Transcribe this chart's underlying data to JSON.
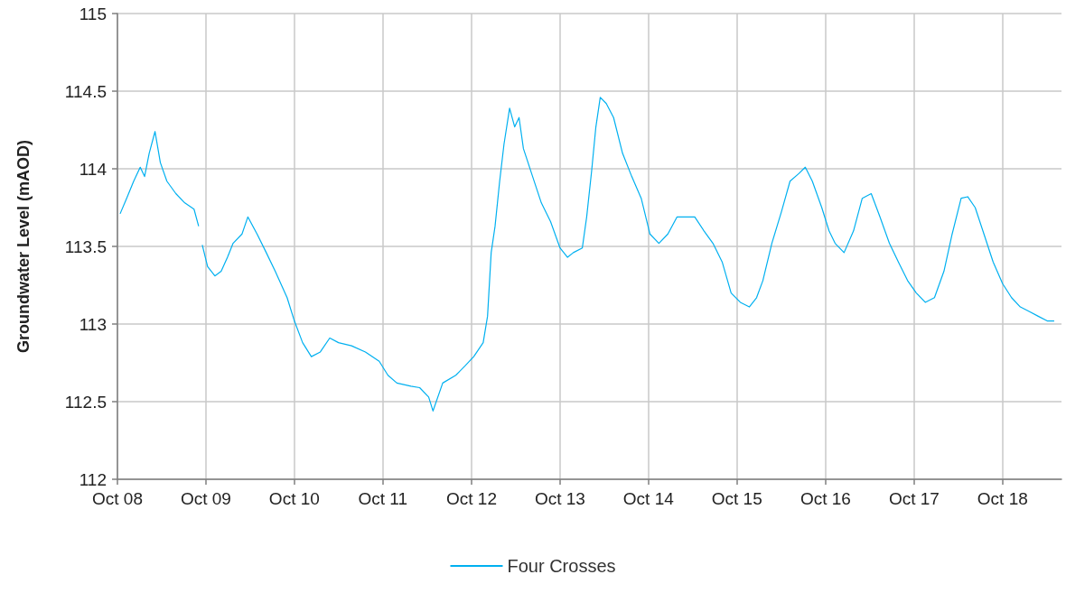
{
  "chart_data": {
    "type": "line",
    "ylabel": "Groundwater Level (mAOD)",
    "x": [
      "2008-10-12",
      "2008-11-08",
      "2008-12-07",
      "2009-01-03",
      "2009-01-21",
      "2009-02-09",
      "2009-03-05",
      "2009-03-27",
      "2009-04-23",
      "2009-05-30",
      "2009-07-06",
      "2009-08-13",
      "2009-09-01",
      "2009-09-10",
      "2009-09-16",
      "2009-10-08",
      "2009-11-07",
      "2009-12-03",
      "2009-12-29",
      "2010-01-21",
      "2010-02-27",
      "2010-03-23",
      "2010-04-30",
      "2010-06-07",
      "2010-07-14",
      "2010-09-01",
      "2010-10-01",
      "2010-11-04",
      "2010-12-10",
      "2011-01-16",
      "2011-02-24",
      "2011-04-01",
      "2011-05-25",
      "2011-07-21",
      "2011-09-16",
      "2011-10-22",
      "2011-11-28",
      "2012-01-25",
      "2012-03-01",
      "2012-04-07",
      "2012-04-25",
      "2012-06-04",
      "2012-07-28",
      "2012-09-04",
      "2012-10-10",
      "2012-11-18",
      "2012-12-06",
      "2012-12-21",
      "2013-01-06",
      "2013-01-25",
      "2013-02-12",
      "2013-03-07",
      "2013-03-28",
      "2013-04-15",
      "2013-05-03",
      "2013-06-10",
      "2013-07-16",
      "2013-08-23",
      "2013-10-01",
      "2013-11-01",
      "2013-11-25",
      "2014-01-01",
      "2014-01-19",
      "2014-02-08",
      "2014-02-26",
      "2014-03-16",
      "2014-04-10",
      "2014-05-10",
      "2014-06-16",
      "2014-07-24",
      "2014-09-01",
      "2014-10-07",
      "2014-11-13",
      "2014-12-20",
      "2015-01-27",
      "2015-03-04",
      "2015-04-10",
      "2015-05-18",
      "2015-06-24",
      "2015-08-01",
      "2015-09-07",
      "2015-10-15",
      "2015-11-21",
      "2015-12-21",
      "2016-01-16",
      "2016-02-22",
      "2016-04-01",
      "2016-05-07",
      "2016-06-13",
      "2016-07-09",
      "2016-08-07",
      "2016-09-15",
      "2016-10-15",
      "2016-11-09",
      "2016-12-16",
      "2017-01-24",
      "2017-03-01",
      "2017-04-07",
      "2017-05-13",
      "2017-06-21",
      "2017-07-28",
      "2017-09-04",
      "2017-10-10",
      "2017-11-16",
      "2017-12-24",
      "2018-02-01",
      "2018-03-07",
      "2018-04-13",
      "2018-05-10",
      "2018-06-10",
      "2018-07-16",
      "2018-08-23",
      "2018-10-01",
      "2018-11-07",
      "2018-12-13",
      "2019-01-20",
      "2019-02-25",
      "2019-04-03",
      "2019-05-02"
    ],
    "series": [
      {
        "name": "Four Crosses",
        "color": "#00b0f0",
        "values": [
          113.71,
          113.81,
          113.92,
          114.01,
          113.95,
          114.1,
          114.24,
          114.04,
          113.92,
          113.84,
          113.78,
          113.74,
          113.63,
          null,
          113.51,
          113.37,
          113.31,
          113.34,
          113.43,
          113.52,
          113.58,
          113.69,
          113.58,
          113.46,
          113.34,
          113.17,
          113.02,
          112.88,
          112.79,
          112.82,
          112.91,
          112.88,
          112.86,
          112.82,
          112.76,
          112.67,
          112.62,
          112.6,
          112.59,
          112.53,
          112.44,
          112.62,
          112.67,
          112.73,
          112.79,
          112.88,
          113.05,
          113.46,
          113.63,
          113.92,
          114.16,
          114.39,
          114.27,
          114.33,
          114.13,
          113.95,
          113.78,
          113.66,
          113.49,
          113.43,
          113.46,
          113.49,
          113.69,
          113.98,
          114.27,
          114.46,
          114.42,
          114.33,
          114.1,
          113.95,
          113.81,
          113.58,
          113.52,
          113.58,
          113.69,
          113.69,
          113.69,
          113.6,
          113.52,
          113.4,
          113.2,
          113.14,
          113.11,
          113.17,
          113.28,
          113.52,
          113.72,
          113.92,
          113.97,
          114.01,
          113.92,
          113.75,
          113.6,
          113.52,
          113.46,
          113.6,
          113.81,
          113.84,
          113.69,
          113.52,
          113.4,
          113.28,
          113.2,
          113.14,
          113.17,
          113.34,
          113.58,
          113.81,
          113.82,
          113.75,
          113.58,
          113.4,
          113.26,
          113.17,
          113.11,
          113.08,
          113.05,
          113.02,
          113.02
        ]
      }
    ],
    "xlim": [
      "2008-10-01",
      "2019-06-01"
    ],
    "xticks": [
      {
        "value": "2008-10-01",
        "label": "Oct 08"
      },
      {
        "value": "2009-10-01",
        "label": "Oct 09"
      },
      {
        "value": "2010-10-01",
        "label": "Oct 10"
      },
      {
        "value": "2011-10-01",
        "label": "Oct 11"
      },
      {
        "value": "2012-10-01",
        "label": "Oct 12"
      },
      {
        "value": "2013-10-01",
        "label": "Oct 13"
      },
      {
        "value": "2014-10-01",
        "label": "Oct 14"
      },
      {
        "value": "2015-10-01",
        "label": "Oct 15"
      },
      {
        "value": "2016-10-01",
        "label": "Oct 16"
      },
      {
        "value": "2017-10-01",
        "label": "Oct 17"
      },
      {
        "value": "2018-10-01",
        "label": "Oct 18"
      }
    ],
    "ylim": [
      112,
      115
    ],
    "yticks": [
      112,
      112.5,
      113,
      113.5,
      114,
      114.5,
      115
    ],
    "grid": true,
    "legend": "bottom",
    "marker": "none",
    "line_style": "solid"
  }
}
